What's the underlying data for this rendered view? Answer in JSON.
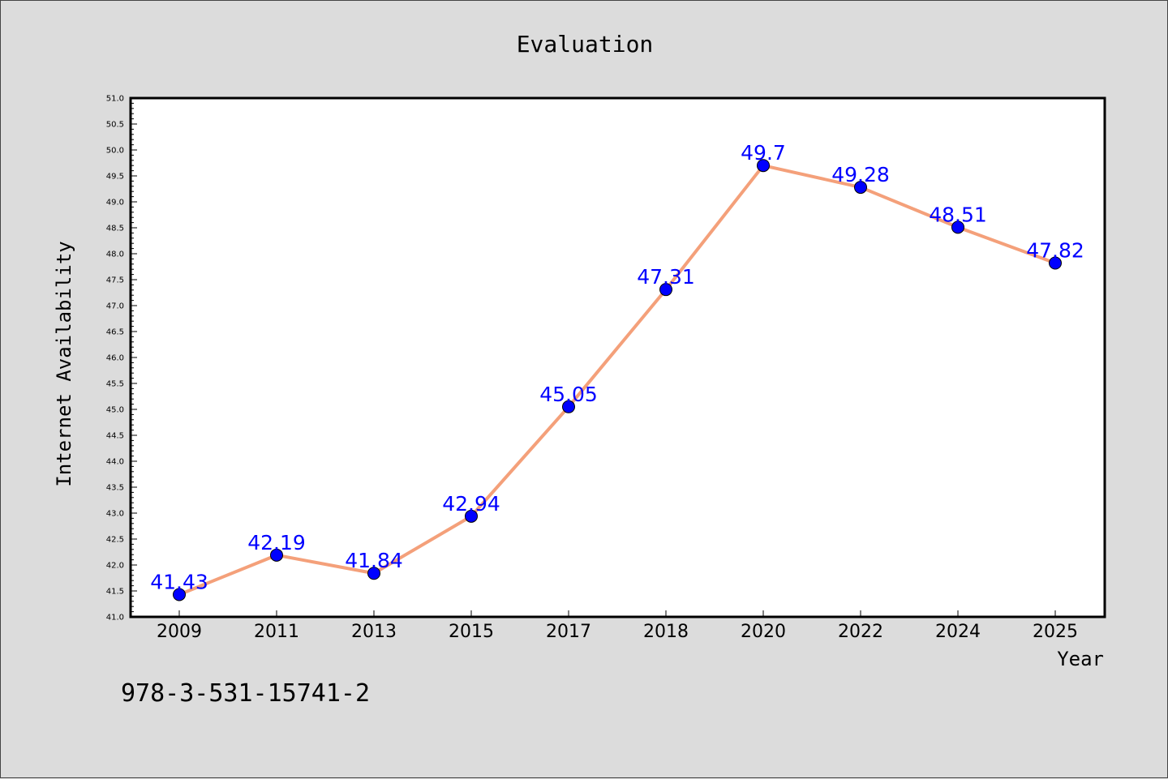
{
  "chart_data": {
    "type": "line",
    "title": "Evaluation",
    "xlabel": "Year",
    "ylabel": "Internet Availability",
    "categories": [
      "2009",
      "2011",
      "2013",
      "2015",
      "2017",
      "2018",
      "2020",
      "2022",
      "2024",
      "2025"
    ],
    "series": [
      {
        "values": [
          41.43,
          42.19,
          41.84,
          42.94,
          45.05,
          47.31,
          49.7,
          49.28,
          48.51,
          47.82
        ],
        "labels": [
          "41.43",
          "42.19",
          "41.84",
          "42.94",
          "45.05",
          "47.31",
          "49.7",
          "49.28",
          "48.51",
          "47.82"
        ],
        "line_color": "#f4a07a",
        "marker_color": "#0000ff"
      }
    ],
    "ylim": [
      41.0,
      51.0
    ],
    "yticks": [
      "41.0",
      "41.5",
      "42.0",
      "42.5",
      "43.0",
      "43.5",
      "44.0",
      "44.5",
      "45.0",
      "45.5",
      "46.0",
      "46.5",
      "47.0",
      "47.5",
      "48.0",
      "48.5",
      "49.0",
      "49.5",
      "50.0",
      "50.5",
      "51.0"
    ],
    "grid": false,
    "legend": "none"
  },
  "annotation": "978-3-531-15741-2"
}
